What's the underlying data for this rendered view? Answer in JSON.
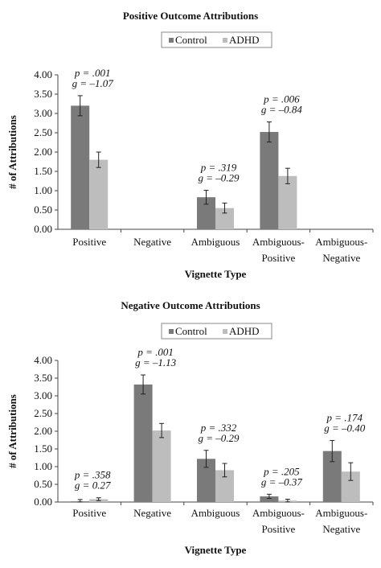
{
  "chart_data": [
    {
      "type": "bar",
      "title": "Positive Outcome Attributions",
      "xlabel": "Vignette Type",
      "ylabel": "# of Attributions",
      "ylim": [
        0,
        4
      ],
      "yticks": [
        "0.00",
        "0.50",
        "1.00",
        "1.50",
        "2.00",
        "2.50",
        "3.00",
        "3.50",
        "4.00"
      ],
      "categories": [
        [
          "Positive"
        ],
        [
          "Negative"
        ],
        [
          "Ambiguous"
        ],
        [
          "Ambiguous-",
          "Positive"
        ],
        [
          "Ambiguous-",
          "Negative"
        ]
      ],
      "series": [
        {
          "name": "Control",
          "values": [
            3.2,
            null,
            0.83,
            2.52,
            null
          ],
          "errors": [
            0.26,
            null,
            0.18,
            0.26,
            null
          ],
          "color": "#7a7a7a"
        },
        {
          "name": "ADHD",
          "values": [
            1.8,
            null,
            0.55,
            1.38,
            null
          ],
          "errors": [
            0.2,
            null,
            0.13,
            0.2,
            null
          ],
          "color": "#bdbdbd"
        }
      ],
      "annotations": [
        {
          "index": 0,
          "p": "p = .001",
          "g": "g = –1.07"
        },
        {
          "index": 2,
          "p": "p = .319",
          "g": "g = –0.29"
        },
        {
          "index": 3,
          "p": "p = .006",
          "g": "g = –0.84"
        }
      ],
      "legend": "top-center",
      "grid": false
    },
    {
      "type": "bar",
      "title": "Negative Outcome Attributions",
      "xlabel": "Vignette Type",
      "ylabel": "# of Attributions",
      "ylim": [
        0,
        4
      ],
      "yticks": [
        "0.00",
        "0.50",
        "1.00",
        "1.50",
        "2.00",
        "2.50",
        "3.00",
        "3.50",
        "4.00"
      ],
      "categories": [
        [
          "Positive"
        ],
        [
          "Negative"
        ],
        [
          "Ambiguous"
        ],
        [
          "Ambiguous-",
          "Positive"
        ],
        [
          "Ambiguous-",
          "Negative"
        ]
      ],
      "series": [
        {
          "name": "Control",
          "values": [
            0.02,
            3.32,
            1.22,
            0.16,
            1.44
          ],
          "errors": [
            0.05,
            0.27,
            0.24,
            0.06,
            0.3
          ],
          "color": "#7a7a7a"
        },
        {
          "name": "ADHD",
          "values": [
            0.08,
            2.02,
            0.9,
            0.04,
            0.86
          ],
          "errors": [
            0.04,
            0.2,
            0.19,
            0.04,
            0.25
          ],
          "color": "#bdbdbd"
        }
      ],
      "annotations": [
        {
          "index": 0,
          "p": "p = .358",
          "g": "g = 0.27"
        },
        {
          "index": 1,
          "p": "p = .001",
          "g": "g = –1.13"
        },
        {
          "index": 2,
          "p": "p = .332",
          "g": "g = –0.29"
        },
        {
          "index": 3,
          "p": "p = .205",
          "g": "g = –0.37"
        },
        {
          "index": 4,
          "p": "p = .174",
          "g": "g = –0.40"
        }
      ],
      "legend": "top-center",
      "grid": false
    }
  ]
}
